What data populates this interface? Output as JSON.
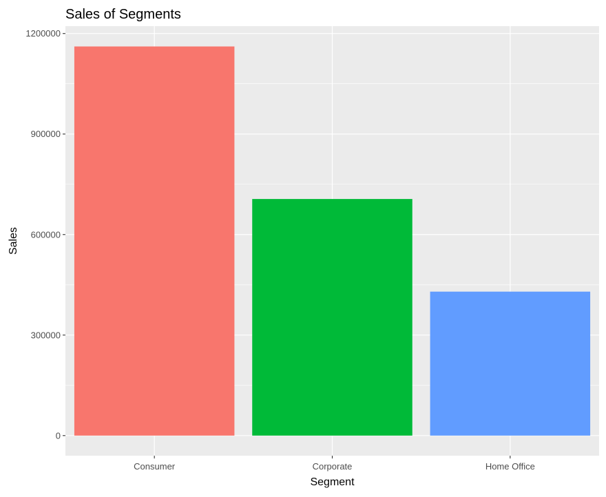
{
  "chart_data": {
    "type": "bar",
    "title": "Sales of Segments",
    "xlabel": "Segment",
    "ylabel": "Sales",
    "categories": [
      "Consumer",
      "Corporate",
      "Home Office"
    ],
    "values": [
      1161401,
      706146,
      429653
    ],
    "ylim": [
      -60000,
      1222000
    ],
    "yticks": [
      0,
      300000,
      600000,
      900000,
      1200000
    ],
    "ytick_labels": [
      "0",
      "300000",
      "600000",
      "900000",
      "1200000"
    ],
    "grid": true,
    "legend": "none",
    "colors": {
      "panel_background": "#EBEBEB",
      "grid_major": "#FFFFFF",
      "Consumer": "#F8766D",
      "Corporate": "#00BA38",
      "Home Office": "#619CFF"
    }
  }
}
